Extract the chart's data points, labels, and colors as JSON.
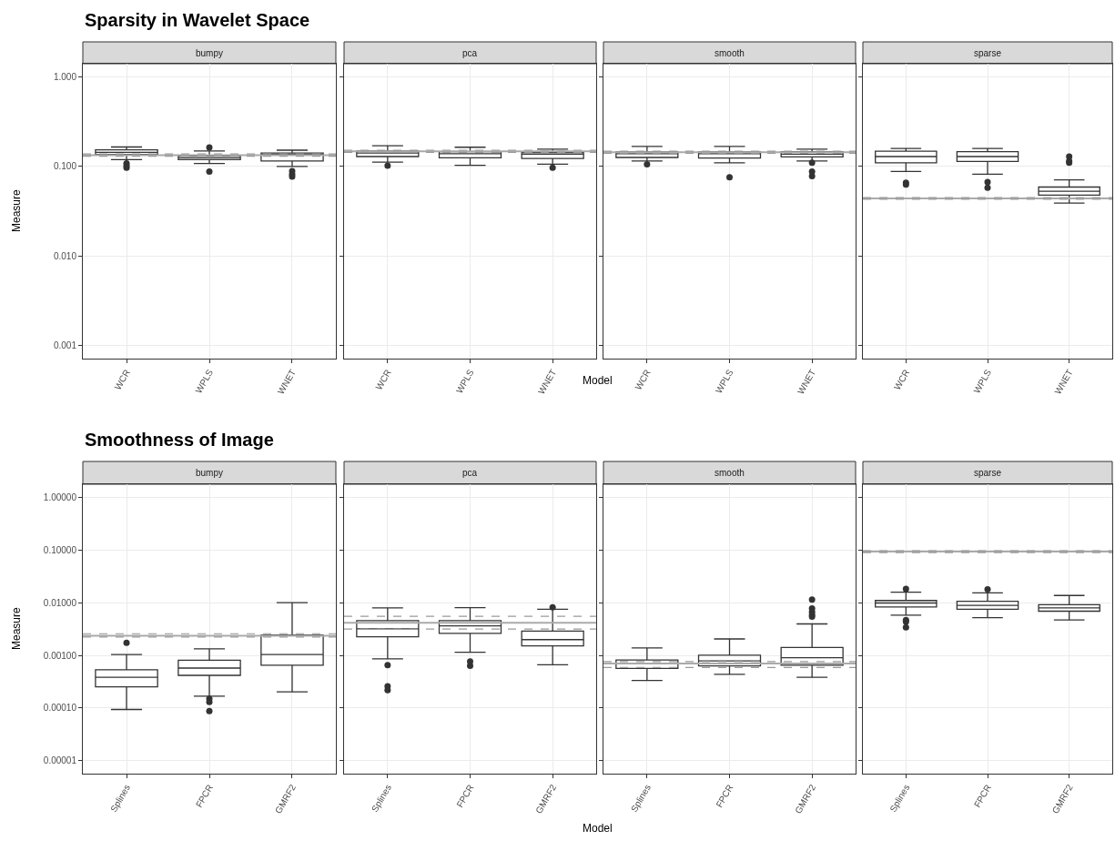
{
  "chart_data": [
    {
      "type": "box",
      "title": "Sparsity in Wavelet Space",
      "subtitle": "bumpy",
      "ylabel": "Measure",
      "categories": [
        "WCR",
        "WPLS",
        "WNET"
      ],
      "color": "#333333",
      "log": true,
      "grid": true,
      "ylim": [
        0.00072,
        1.4
      ],
      "yticks": [
        {
          "value": 0.001,
          "label": "0.001"
        },
        {
          "value": 0.01,
          "label": "0.010"
        },
        {
          "value": 0.1,
          "label": "0.100"
        },
        {
          "value": 1,
          "label": "1.000"
        }
      ],
      "boxes": [
        {
          "low": 0.119,
          "q1": 0.136,
          "median": 0.144,
          "q3": 0.153,
          "high": 0.165,
          "outliers": [
            0.108,
            0.102,
            0.097
          ]
        },
        {
          "low": 0.108,
          "q1": 0.119,
          "median": 0.125,
          "q3": 0.131,
          "high": 0.149,
          "outliers": [
            0.163,
            0.088
          ]
        },
        {
          "low": 0.1,
          "q1": 0.115,
          "median": 0.136,
          "q3": 0.141,
          "high": 0.152,
          "outliers": [
            0.089,
            0.082,
            0.077
          ]
        }
      ],
      "ref_lines": [
        {
          "axis": "y",
          "value": 0.134,
          "color": "#aaaaaa",
          "line_style": "solid"
        },
        {
          "axis": "y",
          "value": 0.138,
          "color": "#999999",
          "line_style": "dashed"
        },
        {
          "axis": "y",
          "value": 0.13,
          "color": "#999999",
          "line_style": "dashed"
        }
      ]
    },
    {
      "type": "box",
      "subtitle": "pca",
      "xlabel": "Model",
      "tick_labels": "x",
      "categories": [
        "WCR",
        "WPLS",
        "WNET"
      ],
      "color": "#333333",
      "log": true,
      "grid": true,
      "ylim": [
        0.00072,
        1.4
      ],
      "yticks": [
        {
          "value": 0.001,
          "label": null
        },
        {
          "value": 0.01,
          "label": null
        },
        {
          "value": 0.1,
          "label": null
        },
        {
          "value": 1,
          "label": null
        }
      ],
      "boxes": [
        {
          "low": 0.112,
          "q1": 0.129,
          "median": 0.141,
          "q3": 0.149,
          "high": 0.17,
          "outliers": [
            0.102
          ]
        },
        {
          "low": 0.103,
          "q1": 0.125,
          "median": 0.139,
          "q3": 0.146,
          "high": 0.164
        },
        {
          "low": 0.106,
          "q1": 0.123,
          "median": 0.137,
          "q3": 0.143,
          "high": 0.156,
          "outliers": [
            0.097
          ]
        }
      ],
      "ref_lines": [
        {
          "axis": "y",
          "value": 0.148,
          "color": "#aaaaaa",
          "line_style": "solid"
        },
        {
          "axis": "y",
          "value": 0.152,
          "color": "#999999",
          "line_style": "dashed"
        },
        {
          "axis": "y",
          "value": 0.144,
          "color": "#999999",
          "line_style": "dashed"
        }
      ]
    },
    {
      "type": "box",
      "subtitle": "smooth",
      "tick_labels": "x",
      "categories": [
        "WCR",
        "WPLS",
        "WNET"
      ],
      "color": "#333333",
      "log": true,
      "grid": true,
      "ylim": [
        0.00072,
        1.4
      ],
      "yticks": [
        {
          "value": 0.001,
          "label": null
        },
        {
          "value": 0.01,
          "label": null
        },
        {
          "value": 0.1,
          "label": null
        },
        {
          "value": 1,
          "label": null
        }
      ],
      "boxes": [
        {
          "low": 0.115,
          "q1": 0.126,
          "median": 0.139,
          "q3": 0.145,
          "high": 0.167,
          "outliers": [
            0.106
          ]
        },
        {
          "low": 0.11,
          "q1": 0.124,
          "median": 0.139,
          "q3": 0.145,
          "high": 0.167,
          "outliers": [
            0.076
          ]
        },
        {
          "low": 0.115,
          "q1": 0.128,
          "median": 0.137,
          "q3": 0.146,
          "high": 0.156,
          "outliers": [
            0.11,
            0.088,
            0.078
          ]
        }
      ],
      "ref_lines": [
        {
          "axis": "y",
          "value": 0.144,
          "color": "#aaaaaa",
          "line_style": "solid"
        },
        {
          "axis": "y",
          "value": 0.148,
          "color": "#999999",
          "line_style": "dashed"
        },
        {
          "axis": "y",
          "value": 0.14,
          "color": "#999999",
          "line_style": "dashed"
        }
      ]
    },
    {
      "type": "box",
      "subtitle": "sparse",
      "tick_labels": "x",
      "categories": [
        "WCR",
        "WPLS",
        "WNET"
      ],
      "color": "#333333",
      "log": true,
      "grid": true,
      "ylim": [
        0.00072,
        1.4
      ],
      "yticks": [
        {
          "value": 0.001,
          "label": null
        },
        {
          "value": 0.01,
          "label": null
        },
        {
          "value": 0.1,
          "label": null
        },
        {
          "value": 1,
          "label": null
        }
      ],
      "boxes": [
        {
          "low": 0.088,
          "q1": 0.11,
          "median": 0.129,
          "q3": 0.148,
          "high": 0.159,
          "outliers": [
            0.066,
            0.063
          ]
        },
        {
          "low": 0.082,
          "q1": 0.114,
          "median": 0.129,
          "q3": 0.146,
          "high": 0.159,
          "outliers": [
            0.067,
            0.058
          ]
        },
        {
          "low": 0.039,
          "q1": 0.048,
          "median": 0.053,
          "q3": 0.059,
          "high": 0.071,
          "outliers": [
            0.129,
            0.115,
            0.11
          ]
        }
      ],
      "ref_lines": [
        {
          "axis": "y",
          "value": 0.044,
          "color": "#aaaaaa",
          "line_style": "solid"
        },
        {
          "axis": "y",
          "value": 0.045,
          "color": "#999999",
          "line_style": "dashed"
        },
        {
          "axis": "y",
          "value": 0.043,
          "color": "#999999",
          "line_style": "dashed"
        }
      ]
    },
    {
      "type": "box",
      "title": "Smoothness of Image",
      "subtitle": "bumpy",
      "ylabel": "Measure",
      "categories": [
        "Splines",
        "FPCR",
        "GMRF2"
      ],
      "color": "#333333",
      "log": true,
      "grid": true,
      "ylim": [
        5.7e-06,
        1.77
      ],
      "yticks": [
        {
          "value": 1e-05,
          "label": "0.00001"
        },
        {
          "value": 0.0001,
          "label": "0.00010"
        },
        {
          "value": 0.001,
          "label": "0.00100"
        },
        {
          "value": 0.01,
          "label": "0.01000"
        },
        {
          "value": 0.1,
          "label": "0.10000"
        },
        {
          "value": 1,
          "label": "1.00000"
        }
      ],
      "boxes": [
        {
          "low": 9.4e-05,
          "q1": 0.000252,
          "median": 0.000383,
          "q3": 0.000533,
          "high": 0.00104,
          "outliers": [
            0.00174
          ]
        },
        {
          "low": 0.000168,
          "q1": 0.000418,
          "median": 0.000574,
          "q3": 0.000811,
          "high": 0.00133,
          "outliers": [
            0.00015,
            0.000131,
            8.8e-05
          ]
        },
        {
          "low": 0.000203,
          "q1": 0.000653,
          "median": 0.00104,
          "q3": 0.00243,
          "high": 0.01
        }
      ],
      "ref_lines": [
        {
          "axis": "y",
          "value": 0.00236,
          "color": "#aaaaaa",
          "line_style": "solid"
        },
        {
          "axis": "y",
          "value": 0.00258,
          "color": "#999999",
          "line_style": "dashed"
        },
        {
          "axis": "y",
          "value": 0.00223,
          "color": "#999999",
          "line_style": "dashed"
        }
      ]
    },
    {
      "type": "box",
      "subtitle": "pca",
      "xlabel": "Model",
      "tick_labels": "x",
      "categories": [
        "Splines",
        "FPCR",
        "GMRF2"
      ],
      "color": "#333333",
      "log": true,
      "grid": true,
      "ylim": [
        5.7e-06,
        1.77
      ],
      "yticks": [
        {
          "value": 1e-05,
          "label": null
        },
        {
          "value": 0.0001,
          "label": null
        },
        {
          "value": 0.001,
          "label": null
        },
        {
          "value": 0.01,
          "label": null
        },
        {
          "value": 0.1,
          "label": null
        },
        {
          "value": 1,
          "label": null
        }
      ],
      "boxes": [
        {
          "low": 0.000859,
          "q1": 0.00226,
          "median": 0.0032,
          "q3": 0.00458,
          "high": 0.00794,
          "outliers": [
            0.000653,
            0.000259,
            0.000218
          ]
        },
        {
          "low": 0.00115,
          "q1": 0.00261,
          "median": 0.00364,
          "q3": 0.00458,
          "high": 0.00807,
          "outliers": [
            0.000765,
            0.000635
          ]
        },
        {
          "low": 0.000662,
          "q1": 0.00151,
          "median": 0.00199,
          "q3": 0.00289,
          "high": 0.0075,
          "outliers": [
            0.00817
          ]
        }
      ],
      "ref_lines": [
        {
          "axis": "y",
          "value": 0.00415,
          "color": "#aaaaaa",
          "line_style": "solid"
        },
        {
          "axis": "y",
          "value": 0.00553,
          "color": "#999999",
          "line_style": "dashed"
        },
        {
          "axis": "y",
          "value": 0.00315,
          "color": "#999999",
          "line_style": "dashed"
        }
      ]
    },
    {
      "type": "box",
      "subtitle": "smooth",
      "tick_labels": "x",
      "categories": [
        "Splines",
        "FPCR",
        "GMRF2"
      ],
      "color": "#333333",
      "log": true,
      "grid": true,
      "ylim": [
        5.7e-06,
        1.77
      ],
      "yticks": [
        {
          "value": 1e-05,
          "label": null
        },
        {
          "value": 0.0001,
          "label": null
        },
        {
          "value": 0.001,
          "label": null
        },
        {
          "value": 0.01,
          "label": null
        },
        {
          "value": 0.1,
          "label": null
        },
        {
          "value": 1,
          "label": null
        }
      ],
      "boxes": [
        {
          "low": 0.000333,
          "q1": 0.000565,
          "median": 0.00071,
          "q3": 0.000818,
          "high": 0.00139
        },
        {
          "low": 0.000436,
          "q1": 0.000633,
          "median": 0.000783,
          "q3": 0.00101,
          "high": 0.00205
        },
        {
          "low": 0.000384,
          "q1": 0.000652,
          "median": 0.000905,
          "q3": 0.00141,
          "high": 0.00395,
          "outliers": [
            0.0114,
            0.00774,
            0.00672,
            0.00587,
            0.00545
          ]
        }
      ],
      "ref_lines": [
        {
          "axis": "y",
          "value": 0.0007,
          "color": "#aaaaaa",
          "line_style": "solid"
        },
        {
          "axis": "y",
          "value": 0.000762,
          "color": "#999999",
          "line_style": "dashed"
        },
        {
          "axis": "y",
          "value": 0.000589,
          "color": "#999999",
          "line_style": "dashed"
        }
      ]
    },
    {
      "type": "box",
      "subtitle": "sparse",
      "tick_labels": "x",
      "categories": [
        "Splines",
        "FPCR",
        "GMRF2"
      ],
      "color": "#333333",
      "log": true,
      "grid": true,
      "ylim": [
        5.7e-06,
        1.77
      ],
      "yticks": [
        {
          "value": 1e-05,
          "label": null
        },
        {
          "value": 0.0001,
          "label": null
        },
        {
          "value": 0.001,
          "label": null
        },
        {
          "value": 0.01,
          "label": null
        },
        {
          "value": 0.1,
          "label": null
        },
        {
          "value": 1,
          "label": null
        }
      ],
      "boxes": [
        {
          "low": 0.0058,
          "q1": 0.0083,
          "median": 0.00986,
          "q3": 0.011,
          "high": 0.0158,
          "outliers": [
            0.0182,
            0.00469,
            0.00435,
            0.00342
          ]
        },
        {
          "low": 0.00518,
          "q1": 0.00751,
          "median": 0.00891,
          "q3": 0.0106,
          "high": 0.0154,
          "outliers": [
            0.018
          ]
        },
        {
          "low": 0.00469,
          "q1": 0.0069,
          "median": 0.00796,
          "q3": 0.00918,
          "high": 0.0137
        }
      ],
      "ref_lines": [
        {
          "axis": "y",
          "value": 0.0931,
          "color": "#aaaaaa",
          "line_style": "solid"
        },
        {
          "axis": "y",
          "value": 0.097,
          "color": "#999999",
          "line_style": "dashed"
        },
        {
          "axis": "y",
          "value": 0.0894,
          "color": "#999999",
          "line_style": "dashed"
        }
      ]
    }
  ]
}
